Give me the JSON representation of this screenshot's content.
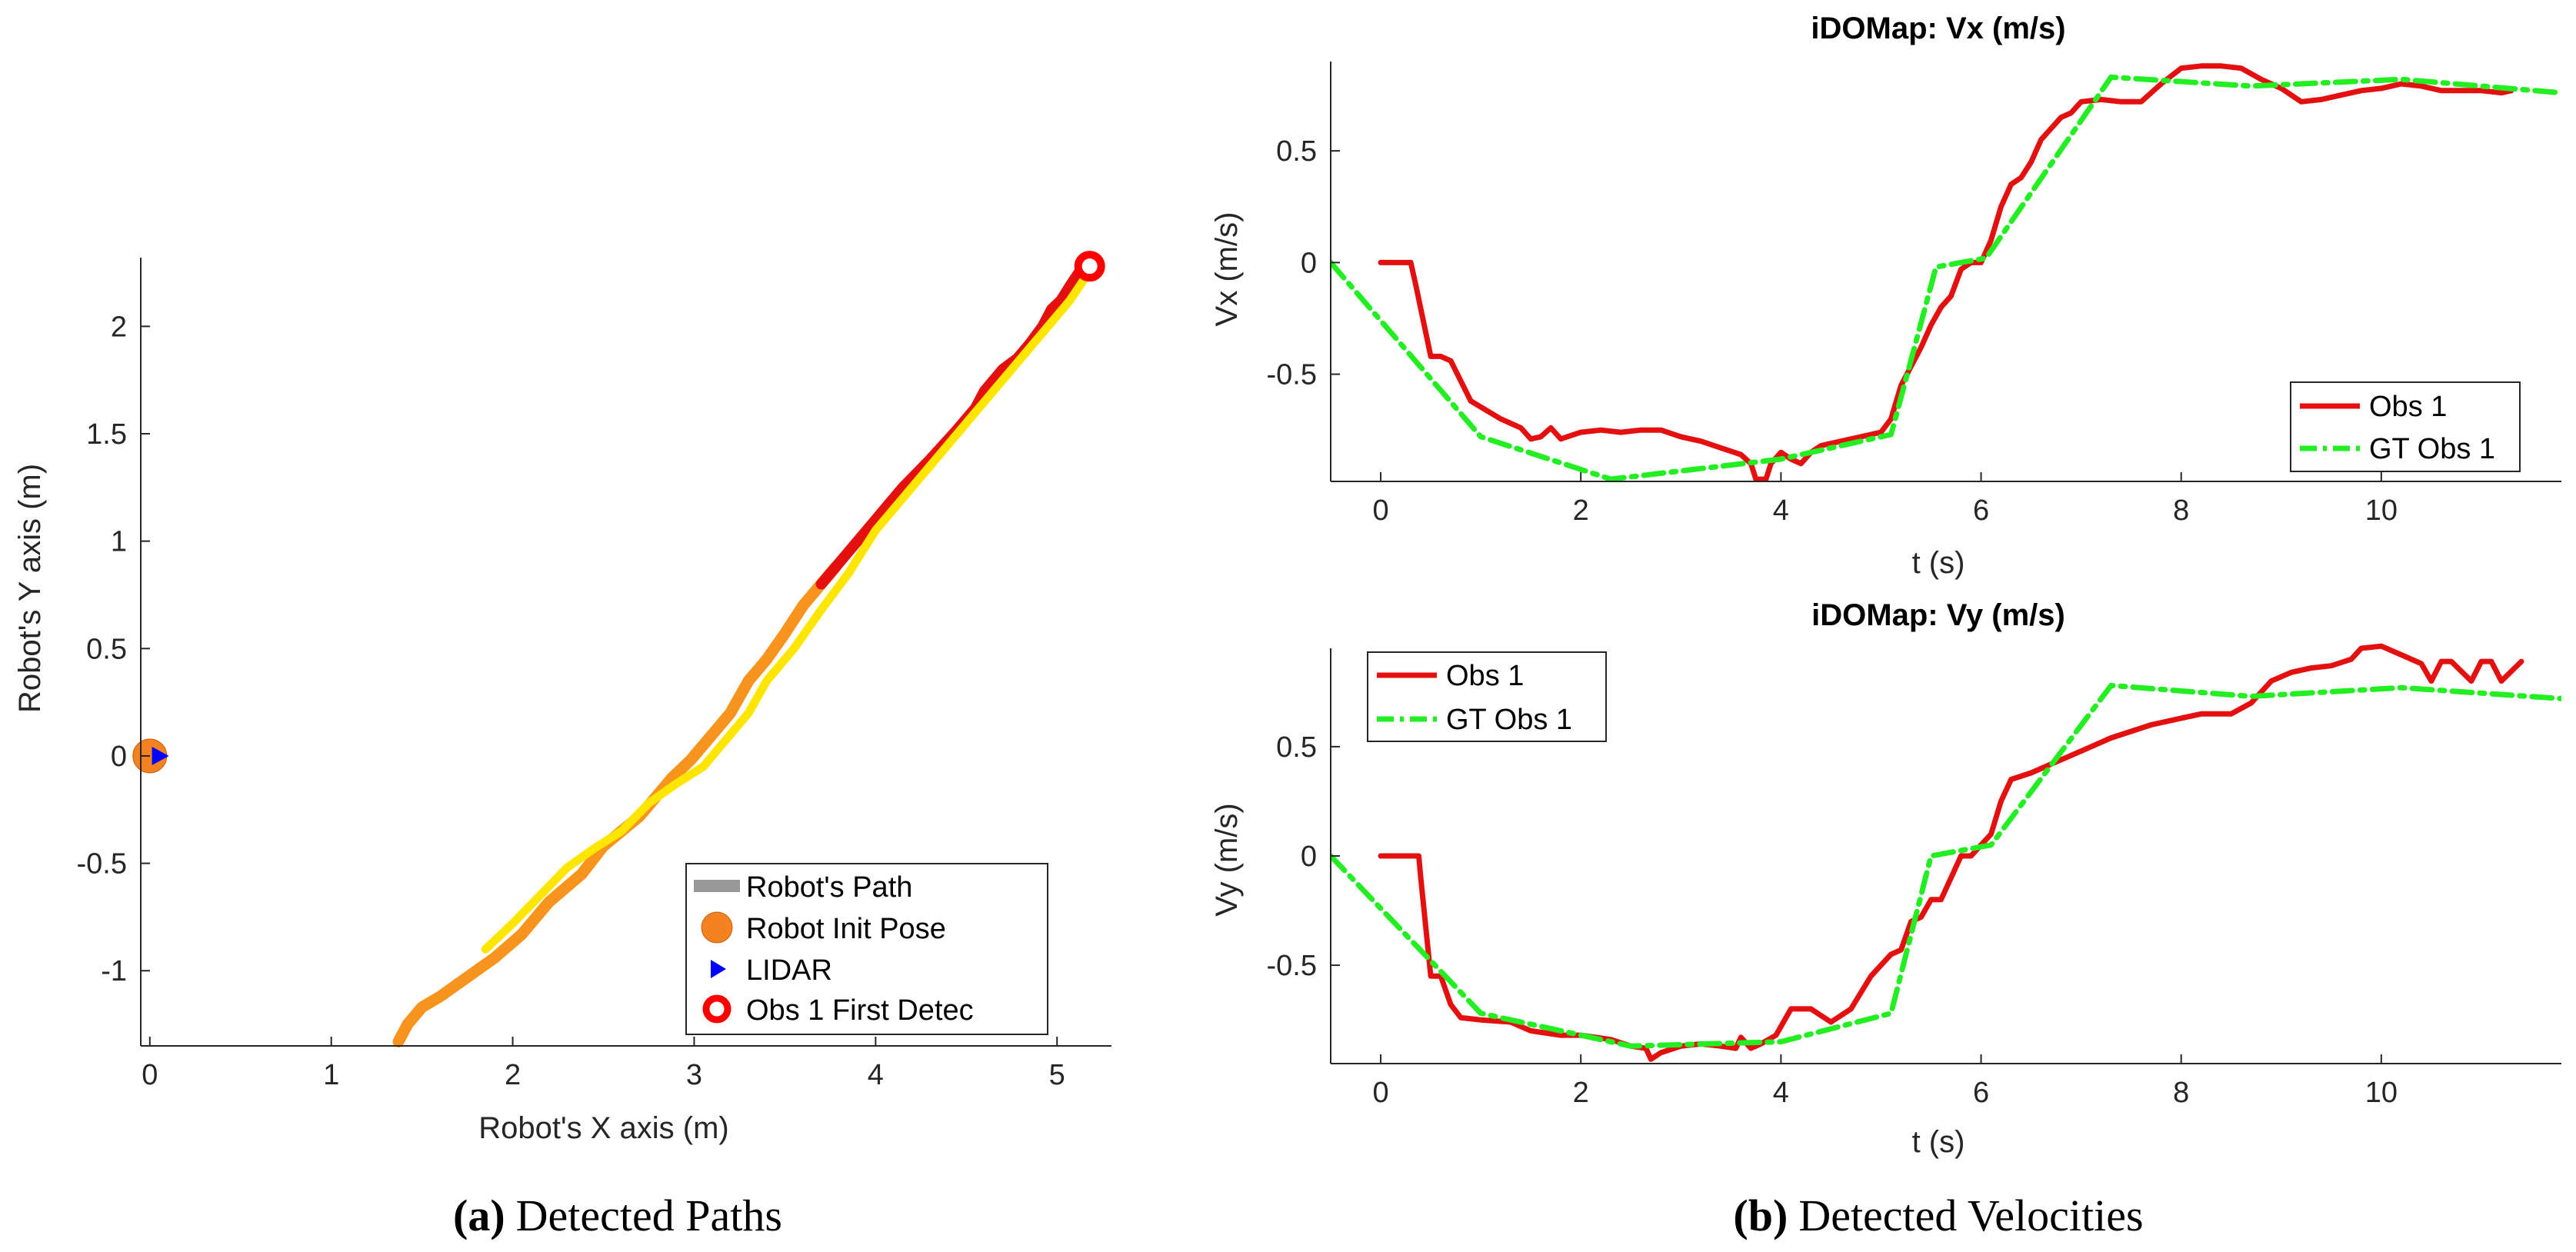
{
  "captions": {
    "a_label": "(a)",
    "a_text": "Detected Paths",
    "b_label": "(b)",
    "b_text": "Detected Velocities"
  },
  "colors": {
    "robot_path": "#999999",
    "init_pose": "#f58220",
    "lidar": "#0000ff",
    "obs_first": "#ff0000",
    "obs_red": "#e41010",
    "gt_green": "#22ee22",
    "path_orange": "#f7941d",
    "path_yellow": "#ffe600"
  },
  "chart_data": [
    {
      "id": "paths",
      "type": "line",
      "title": "",
      "xlabel": "Robot's X axis (m)",
      "ylabel": "Robot's Y axis (m)",
      "xlim": [
        -0.05,
        5.3
      ],
      "ylim": [
        -1.35,
        2.32
      ],
      "xticks": [
        0,
        1,
        2,
        3,
        4,
        5
      ],
      "yticks": [
        -1,
        -0.5,
        0,
        0.5,
        1,
        1.5,
        2
      ],
      "legend": {
        "position": "bottom-right",
        "entries": [
          "Robot's Path",
          "Robot Init Pose",
          "LIDAR",
          "Obs 1 First Detec"
        ]
      },
      "markers": {
        "init_pose": [
          0,
          0
        ],
        "lidar": [
          0.05,
          0
        ],
        "obs_first_detect": [
          5.18,
          2.28
        ]
      },
      "series": [
        {
          "name": "Obs 1 path (red)",
          "color": "red",
          "x": [
            3.7,
            3.85,
            4.0,
            4.15,
            4.3,
            4.45,
            4.55,
            4.6,
            4.7,
            4.78,
            4.8,
            4.85,
            4.92,
            4.97,
            5.02,
            5.08,
            5.12,
            5.18
          ],
          "y": [
            0.8,
            0.95,
            1.1,
            1.25,
            1.38,
            1.52,
            1.62,
            1.7,
            1.8,
            1.85,
            1.87,
            1.92,
            2.0,
            2.08,
            2.12,
            2.2,
            2.25,
            2.28
          ]
        },
        {
          "name": "Obs 1 path (orange)",
          "color": "orange",
          "x": [
            1.37,
            1.42,
            1.5,
            1.6,
            1.75,
            1.9,
            2.05,
            2.2,
            2.38,
            2.5,
            2.6,
            2.7,
            2.8,
            2.88,
            2.98,
            3.08,
            3.2,
            3.3,
            3.4,
            3.5,
            3.6,
            3.7,
            3.78
          ],
          "y": [
            -1.33,
            -1.25,
            -1.17,
            -1.12,
            -1.03,
            -0.94,
            -0.83,
            -0.68,
            -0.55,
            -0.42,
            -0.35,
            -0.28,
            -0.18,
            -0.1,
            -0.02,
            0.08,
            0.2,
            0.35,
            0.45,
            0.57,
            0.7,
            0.8,
            0.88
          ]
        },
        {
          "name": "Obs 1 path (yellow)",
          "color": "yellow",
          "x": [
            1.85,
            2.0,
            2.15,
            2.3,
            2.45,
            2.6,
            2.75,
            2.9,
            3.05,
            3.2,
            3.3,
            3.4,
            3.55,
            3.7,
            3.85,
            4.0,
            4.2,
            4.4,
            4.55,
            4.7,
            4.85,
            4.97,
            5.07,
            5.15
          ],
          "y": [
            -0.9,
            -0.78,
            -0.65,
            -0.52,
            -0.43,
            -0.35,
            -0.22,
            -0.13,
            -0.05,
            0.1,
            0.2,
            0.35,
            0.5,
            0.68,
            0.85,
            1.05,
            1.25,
            1.45,
            1.6,
            1.75,
            1.9,
            2.02,
            2.12,
            2.22
          ]
        }
      ]
    },
    {
      "id": "vx",
      "type": "line",
      "title": "iDOMap: Vx (m/s)",
      "xlabel": "t (s)",
      "ylabel": "Vx (m/s)",
      "xlim": [
        -0.5,
        11.8
      ],
      "ylim": [
        -0.98,
        0.9
      ],
      "xticks": [
        0,
        2,
        4,
        6,
        8,
        10
      ],
      "yticks": [
        -0.5,
        0,
        0.5
      ],
      "legend": {
        "position": "bottom-right",
        "entries": [
          "Obs 1",
          "GT Obs 1"
        ]
      },
      "series": [
        {
          "name": "Obs 1",
          "style": "solid red",
          "x": [
            0,
            0.3,
            0.35,
            0.5,
            0.6,
            0.7,
            0.9,
            1.2,
            1.3,
            1.4,
            1.5,
            1.6,
            1.7,
            1.8,
            2.0,
            2.2,
            2.4,
            2.6,
            2.8,
            3.0,
            3.2,
            3.4,
            3.6,
            3.7,
            3.75,
            3.85,
            3.9,
            4.0,
            4.1,
            4.2,
            4.3,
            4.4,
            4.6,
            4.8,
            5.0,
            5.1,
            5.2,
            5.4,
            5.5,
            5.6,
            5.7,
            5.8,
            5.9,
            6.0,
            6.1,
            6.2,
            6.3,
            6.4,
            6.5,
            6.6,
            6.7,
            6.8,
            6.9,
            7.0,
            7.2,
            7.4,
            7.6,
            7.8,
            8.0,
            8.2,
            8.4,
            8.6,
            8.8,
            9.0,
            9.2,
            9.4,
            9.6,
            9.8,
            10.0,
            10.2,
            10.4,
            10.6,
            10.8,
            11.0,
            11.2,
            11.3
          ],
          "y": [
            0,
            0,
            -0.1,
            -0.42,
            -0.42,
            -0.44,
            -0.62,
            -0.7,
            -0.72,
            -0.74,
            -0.79,
            -0.78,
            -0.74,
            -0.79,
            -0.76,
            -0.75,
            -0.76,
            -0.75,
            -0.75,
            -0.78,
            -0.8,
            -0.83,
            -0.86,
            -0.9,
            -0.97,
            -0.97,
            -0.9,
            -0.85,
            -0.88,
            -0.9,
            -0.85,
            -0.82,
            -0.8,
            -0.78,
            -0.76,
            -0.7,
            -0.55,
            -0.38,
            -0.28,
            -0.2,
            -0.15,
            -0.03,
            0,
            0,
            0.1,
            0.25,
            0.35,
            0.38,
            0.45,
            0.55,
            0.6,
            0.65,
            0.67,
            0.72,
            0.73,
            0.72,
            0.72,
            0.8,
            0.87,
            0.88,
            0.88,
            0.87,
            0.82,
            0.78,
            0.72,
            0.73,
            0.75,
            0.77,
            0.78,
            0.8,
            0.79,
            0.77,
            0.77,
            0.77,
            0.76,
            0.77
          ]
        },
        {
          "name": "GT Obs 1",
          "style": "dash-dot green",
          "x": [
            -0.5,
            1.0,
            2.3,
            4.0,
            5.1,
            5.55,
            6.05,
            7.3,
            8.7,
            10.2,
            11.8
          ],
          "y": [
            0,
            -0.78,
            -0.97,
            -0.88,
            -0.77,
            -0.02,
            0.02,
            0.83,
            0.79,
            0.82,
            0.76
          ]
        }
      ]
    },
    {
      "id": "vy",
      "type": "line",
      "title": "iDOMap: Vy (m/s)",
      "xlabel": "t (s)",
      "ylabel": "Vy (m/s)",
      "xlim": [
        -0.5,
        11.8
      ],
      "ylim": [
        -0.95,
        0.95
      ],
      "xticks": [
        0,
        2,
        4,
        6,
        8,
        10
      ],
      "yticks": [
        -0.5,
        0,
        0.5
      ],
      "legend": {
        "position": "top-left",
        "entries": [
          "Obs 1",
          "GT Obs 1"
        ]
      },
      "series": [
        {
          "name": "Obs 1",
          "style": "solid red",
          "x": [
            0,
            0.3,
            0.38,
            0.4,
            0.5,
            0.6,
            0.7,
            0.8,
            1.0,
            1.3,
            1.5,
            1.8,
            2.0,
            2.3,
            2.5,
            2.65,
            2.7,
            2.8,
            3.0,
            3.2,
            3.4,
            3.55,
            3.6,
            3.7,
            3.8,
            3.95,
            4.1,
            4.3,
            4.5,
            4.7,
            4.9,
            5.1,
            5.2,
            5.3,
            5.4,
            5.5,
            5.6,
            5.7,
            5.8,
            5.9,
            6.0,
            6.1,
            6.2,
            6.3,
            6.5,
            6.7,
            6.9,
            7.1,
            7.3,
            7.5,
            7.7,
            8.0,
            8.2,
            8.5,
            8.7,
            8.9,
            9.1,
            9.3,
            9.5,
            9.7,
            9.8,
            10.0,
            10.2,
            10.4,
            10.5,
            10.6,
            10.7,
            10.9,
            11.0,
            11.1,
            11.2,
            11.4
          ],
          "y": [
            0,
            0,
            0,
            -0.1,
            -0.55,
            -0.55,
            -0.68,
            -0.74,
            -0.75,
            -0.76,
            -0.8,
            -0.82,
            -0.82,
            -0.84,
            -0.87,
            -0.88,
            -0.93,
            -0.9,
            -0.87,
            -0.86,
            -0.87,
            -0.88,
            -0.83,
            -0.88,
            -0.86,
            -0.82,
            -0.7,
            -0.7,
            -0.76,
            -0.7,
            -0.55,
            -0.45,
            -0.43,
            -0.3,
            -0.28,
            -0.2,
            -0.2,
            -0.1,
            0,
            0,
            0.05,
            0.1,
            0.25,
            0.35,
            0.38,
            0.42,
            0.46,
            0.5,
            0.54,
            0.57,
            0.6,
            0.63,
            0.65,
            0.65,
            0.7,
            0.8,
            0.84,
            0.86,
            0.87,
            0.9,
            0.95,
            0.96,
            0.92,
            0.88,
            0.8,
            0.89,
            0.89,
            0.8,
            0.89,
            0.89,
            0.8,
            0.89
          ]
        },
        {
          "name": "GT Obs 1",
          "style": "dash-dot green",
          "x": [
            -0.5,
            1.0,
            2.5,
            4.0,
            5.1,
            5.5,
            6.1,
            7.3,
            8.7,
            10.2,
            11.8
          ],
          "y": [
            0,
            -0.72,
            -0.87,
            -0.85,
            -0.72,
            0,
            0.05,
            0.78,
            0.73,
            0.77,
            0.72
          ]
        }
      ]
    }
  ]
}
